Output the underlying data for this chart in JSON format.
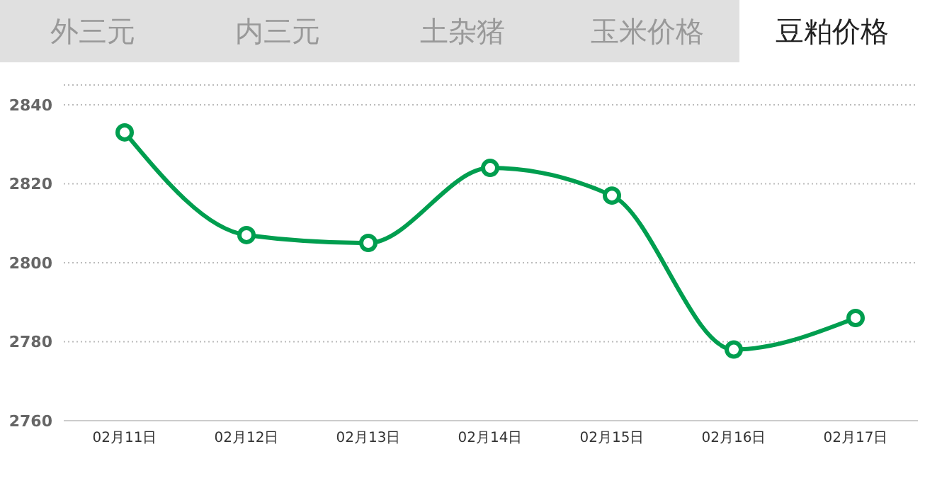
{
  "chart_data": {
    "type": "line",
    "title": "豆粕价格",
    "annotations": [
      "外三元",
      "内三元",
      "土杂猪",
      "玉米价格"
    ],
    "categories": [
      "02月11日",
      "02月12日",
      "02月13日",
      "02月14日",
      "02月15日",
      "02月16日",
      "02月17日"
    ],
    "series": [
      {
        "color": "#009e4f",
        "values": [
          2833,
          2807,
          2805,
          2824,
          2817,
          2778,
          2786
        ]
      }
    ],
    "ylim": [
      2760,
      2845
    ],
    "yticks": [
      2760,
      2780,
      2800,
      2820,
      2840
    ],
    "grid": "y",
    "legend": false,
    "marker": "circle",
    "line_style": "solid"
  }
}
